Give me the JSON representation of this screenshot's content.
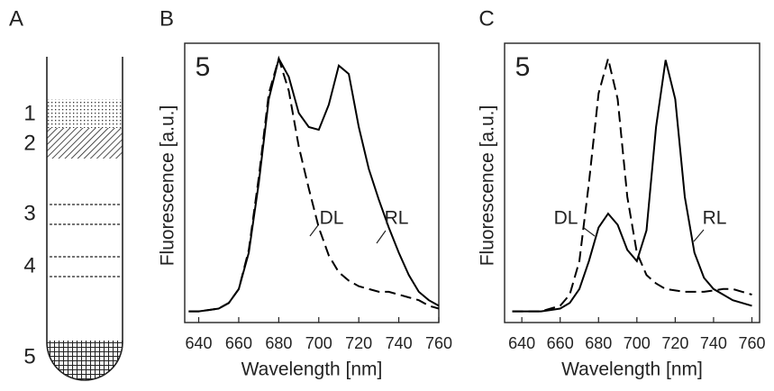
{
  "diagram": {
    "label": "A",
    "bands": [
      "1",
      "2",
      "3",
      "4",
      "5"
    ]
  },
  "chart_data": [
    {
      "type": "line",
      "panel_label": "B",
      "annotation": "5",
      "x_label": "Wavelength [nm]",
      "y_label": "Fluorescence [a.u.]",
      "x": [
        635,
        640,
        645,
        650,
        655,
        660,
        665,
        670,
        675,
        680,
        685,
        690,
        695,
        700,
        705,
        710,
        715,
        720,
        725,
        730,
        735,
        740,
        745,
        750,
        755,
        760
      ],
      "series": [
        {
          "name": "RL",
          "color": "#000000",
          "dash": false,
          "values": [
            0.04,
            0.04,
            0.045,
            0.05,
            0.07,
            0.12,
            0.25,
            0.5,
            0.8,
            0.945,
            0.88,
            0.75,
            0.7,
            0.69,
            0.78,
            0.92,
            0.89,
            0.7,
            0.55,
            0.44,
            0.34,
            0.25,
            0.17,
            0.11,
            0.08,
            0.06
          ]
        },
        {
          "name": "DL",
          "color": "#000000",
          "dash": true,
          "values": [
            0.04,
            0.04,
            0.045,
            0.05,
            0.07,
            0.12,
            0.26,
            0.52,
            0.82,
            0.945,
            0.83,
            0.63,
            0.48,
            0.34,
            0.24,
            0.18,
            0.15,
            0.13,
            0.12,
            0.11,
            0.11,
            0.1,
            0.09,
            0.08,
            0.06,
            0.05
          ]
        }
      ],
      "xlim": [
        633,
        760
      ],
      "xticks": [
        640,
        660,
        680,
        700,
        720,
        740,
        760
      ],
      "ylim": [
        0,
        1
      ]
    },
    {
      "type": "line",
      "panel_label": "C",
      "annotation": "5",
      "x_label": "Wavelength [nm]",
      "y_label": "Fluorescence [a.u.]",
      "x": [
        635,
        640,
        645,
        650,
        655,
        660,
        665,
        670,
        675,
        680,
        685,
        690,
        695,
        700,
        705,
        710,
        715,
        720,
        725,
        730,
        735,
        740,
        745,
        750,
        755,
        760
      ],
      "series": [
        {
          "name": "RL",
          "color": "#000000",
          "dash": false,
          "values": [
            0.04,
            0.04,
            0.04,
            0.04,
            0.045,
            0.05,
            0.07,
            0.12,
            0.22,
            0.34,
            0.39,
            0.35,
            0.26,
            0.22,
            0.33,
            0.7,
            0.94,
            0.8,
            0.45,
            0.25,
            0.16,
            0.12,
            0.1,
            0.08,
            0.07,
            0.06
          ]
        },
        {
          "name": "DL",
          "color": "#000000",
          "dash": true,
          "values": [
            0.04,
            0.04,
            0.04,
            0.04,
            0.05,
            0.06,
            0.1,
            0.22,
            0.5,
            0.82,
            0.945,
            0.8,
            0.45,
            0.25,
            0.17,
            0.14,
            0.12,
            0.115,
            0.11,
            0.11,
            0.11,
            0.115,
            0.12,
            0.12,
            0.11,
            0.1
          ]
        }
      ],
      "xlim": [
        631,
        764
      ],
      "xticks": [
        640,
        660,
        680,
        700,
        720,
        740,
        760
      ],
      "ylim": [
        0,
        1
      ]
    }
  ]
}
